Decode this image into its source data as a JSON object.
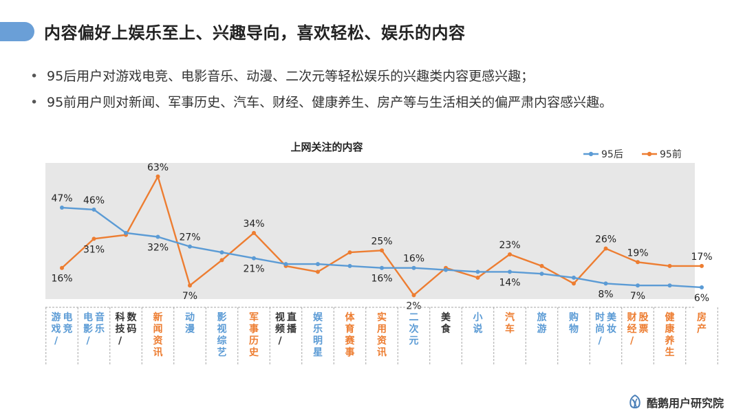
{
  "header": {
    "title": "内容偏好上娱乐至上、兴趣导向，喜欢轻松、娱乐的内容"
  },
  "bullets": [
    "95后用户对游戏电竞、电影音乐、动漫、二次元等轻松娱乐的兴趣类内容更感兴趣；",
    "95前用户则对新闻、军事历史、汽车、财经、健康养生、房产等与生活相关的偏严肃内容感兴趣。"
  ],
  "brand": {
    "name": "酷鹅用户研究院",
    "icon": "penguin-logo-icon"
  },
  "colors": {
    "accent": "#6a9fd7",
    "series_95hou": "#5b9bd5",
    "series_95qian": "#ed7d31",
    "plot_bg": "#e7e7e7",
    "neutral_label": "#333333"
  },
  "chart_data": {
    "type": "line",
    "title": "上网关注的内容",
    "legend_position": "top-right",
    "grid": false,
    "ylim": [
      0,
      70
    ],
    "categories": [
      "游戏/电竞",
      "电影/音乐",
      "科技/数码",
      "新闻资讯",
      "动漫",
      "影视综艺",
      "军事历史",
      "视频/直播",
      "娱乐明星",
      "体育赛事",
      "实用资讯",
      "二次元",
      "美食",
      "小说",
      "汽车",
      "旅游",
      "购物",
      "时尚/美妆",
      "财经/股票",
      "健康养生",
      "房产"
    ],
    "category_group": [
      "95后",
      "95后",
      "neutral",
      "95前",
      "95后",
      "95后",
      "95前",
      "neutral",
      "95后",
      "95前",
      "95前",
      "95后",
      "neutral",
      "95后",
      "95前",
      "95后",
      "95后",
      "95后",
      "95前",
      "95前",
      "95前"
    ],
    "series": [
      {
        "name": "95后",
        "values": [
          47,
          46,
          34,
          32,
          27,
          24,
          21,
          18,
          18,
          17,
          16,
          16,
          15,
          14,
          14,
          13,
          11,
          8,
          7,
          7,
          6
        ],
        "labels": [
          "47%",
          "46%",
          "",
          "32%",
          "27%",
          "",
          "21%",
          "",
          "",
          "",
          "16%",
          "16%",
          "",
          "",
          "14%",
          "",
          "",
          "8%",
          "7%",
          "",
          "6%"
        ]
      },
      {
        "name": "95前",
        "values": [
          16,
          31,
          33,
          63,
          7,
          20,
          34,
          17,
          14,
          24,
          25,
          2,
          16,
          11,
          23,
          17,
          8,
          26,
          19,
          17,
          17
        ],
        "labels": [
          "16%",
          "31%",
          "",
          "63%",
          "7%",
          "",
          "34%",
          "",
          "",
          "",
          "25%",
          "2%",
          "",
          "",
          "23%",
          "",
          "",
          "26%",
          "19%",
          "",
          "17%"
        ]
      }
    ]
  }
}
